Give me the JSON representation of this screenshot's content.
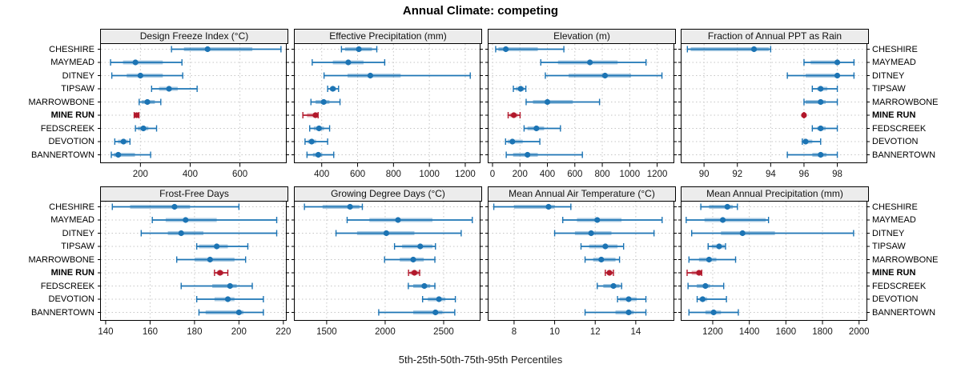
{
  "title": "Annual Climate: competing",
  "caption": "5th-25th-50th-75th-95th Percentiles",
  "colors": {
    "series_blue": "#1c74b4",
    "series_blue_band": "rgba(28,116,180,0.38)",
    "highlight_red": "#b2182b",
    "highlight_red_band": "rgba(178,24,43,0.38)",
    "grid": "#c6c6c6",
    "strip_bg": "#ececec",
    "border": "#000000"
  },
  "sites": [
    "CHESHIRE",
    "MAYMEAD",
    "DITNEY",
    "TIPSAW",
    "MARROWBONE",
    "MINE RUN",
    "FEDSCREEK",
    "DEVOTION",
    "BANNERTOWN"
  ],
  "highlight_site": "MINE RUN",
  "chart_data": {
    "type": "dotplot-interval",
    "percentiles": [
      5,
      25,
      50,
      75,
      95
    ],
    "legend_note": "each row: 5th-95th whisker with caps, 25th-75th thick band, dot at median",
    "panels": [
      {
        "title": "Design Freeze Index (°C)",
        "xlim": [
          38,
          788
        ],
        "ticks": [
          200,
          400,
          600
        ],
        "values": [
          [
            325,
            375,
            470,
            650,
            765
          ],
          [
            80,
            130,
            180,
            290,
            367
          ],
          [
            85,
            145,
            200,
            290,
            370
          ],
          [
            245,
            275,
            315,
            350,
            428
          ],
          [
            195,
            205,
            228,
            258,
            282
          ],
          [
            175,
            180,
            185,
            190,
            194
          ],
          [
            180,
            190,
            212,
            232,
            265
          ],
          [
            97,
            110,
            132,
            150,
            158
          ],
          [
            83,
            93,
            111,
            178,
            241
          ]
        ]
      },
      {
        "title": "Effective Precipitation (mm)",
        "xlim": [
          245,
          1285
        ],
        "ticks": [
          400,
          600,
          800,
          1000,
          1200
        ],
        "values": [
          [
            510,
            530,
            607,
            680,
            707
          ],
          [
            347,
            462,
            548,
            633,
            751
          ],
          [
            413,
            544,
            671,
            840,
            1228
          ],
          [
            433,
            446,
            462,
            480,
            494
          ],
          [
            340,
            366,
            411,
            443,
            502
          ],
          [
            295,
            318,
            365,
            372,
            380
          ],
          [
            333,
            356,
            385,
            413,
            444
          ],
          [
            307,
            322,
            344,
            369,
            433
          ],
          [
            318,
            351,
            381,
            403,
            467
          ]
        ]
      },
      {
        "title": "Elevation (m)",
        "xlim": [
          -35,
          1325
        ],
        "ticks": [
          0,
          200,
          400,
          600,
          800,
          1000,
          1200
        ],
        "values": [
          [
            23,
            43,
            97,
            330,
            520
          ],
          [
            352,
            477,
            710,
            912,
            1119
          ],
          [
            385,
            555,
            820,
            1010,
            1235
          ],
          [
            152,
            170,
            205,
            231,
            243
          ],
          [
            245,
            295,
            400,
            585,
            780
          ],
          [
            114,
            125,
            155,
            184,
            201
          ],
          [
            230,
            255,
            320,
            376,
            495
          ],
          [
            95,
            110,
            145,
            220,
            345
          ],
          [
            100,
            150,
            255,
            330,
            655
          ]
        ]
      },
      {
        "title": "Fraction of Annual PPT as Rain",
        "xlim": [
          88.6,
          99.8
        ],
        "ticks": [
          90,
          92,
          94,
          96,
          98
        ],
        "values": [
          [
            89,
            89.2,
            93,
            93.9,
            94
          ],
          [
            96,
            96.4,
            98,
            98.1,
            99
          ],
          [
            95,
            96.1,
            98,
            98.1,
            99
          ],
          [
            96.5,
            96.8,
            97,
            97.4,
            98
          ],
          [
            96,
            96.1,
            97,
            97.3,
            98
          ],
          [
            96,
            96,
            96,
            96,
            96
          ],
          [
            96.5,
            96.8,
            97,
            97.3,
            98
          ],
          [
            95.9,
            96,
            96.1,
            96.5,
            97
          ],
          [
            95,
            96.5,
            97,
            97.35,
            98
          ]
        ]
      },
      {
        "title": "Frost-Free Days",
        "xlim": [
          137.5,
          221.5
        ],
        "ticks": [
          140,
          160,
          180,
          200,
          220
        ],
        "values": [
          [
            143,
            151,
            171,
            178,
            200
          ],
          [
            161,
            167,
            176,
            190,
            217
          ],
          [
            156,
            168,
            174,
            184,
            217
          ],
          [
            181,
            182,
            190,
            195,
            204
          ],
          [
            172,
            180,
            187,
            198,
            203
          ],
          [
            189,
            190,
            191.5,
            193,
            195
          ],
          [
            174,
            188,
            196,
            199,
            206
          ],
          [
            181,
            189,
            195,
            198,
            211
          ],
          [
            182,
            185,
            200,
            202,
            211
          ]
        ]
      },
      {
        "title": "Growing Degree Days (°C)",
        "xlim": [
          1220,
          2815
        ],
        "ticks": [
          1500,
          2000,
          2500
        ],
        "values": [
          [
            1310,
            1465,
            1700,
            1780,
            1805
          ],
          [
            1675,
            1865,
            2110,
            2405,
            2745
          ],
          [
            1580,
            1760,
            2010,
            2250,
            2650
          ],
          [
            2080,
            2145,
            2300,
            2405,
            2430
          ],
          [
            1995,
            2125,
            2240,
            2330,
            2425
          ],
          [
            2200,
            2215,
            2250,
            2290,
            2295
          ],
          [
            2198,
            2240,
            2335,
            2385,
            2425
          ],
          [
            2320,
            2365,
            2460,
            2515,
            2600
          ],
          [
            1945,
            2240,
            2430,
            2490,
            2595
          ]
        ]
      },
      {
        "title": "Mean Annual Air Temperature (°C)",
        "xlim": [
          6.7,
          15.9
        ],
        "ticks": [
          8,
          10,
          12,
          14
        ],
        "values": [
          [
            7.0,
            8.0,
            9.7,
            10.0,
            10.8
          ],
          [
            10.4,
            11.1,
            12.1,
            13.3,
            15.3
          ],
          [
            10.0,
            11.0,
            11.8,
            12.8,
            14.9
          ],
          [
            11.3,
            11.7,
            12.5,
            13.1,
            13.4
          ],
          [
            11.5,
            11.9,
            12.3,
            13.0,
            13.2
          ],
          [
            12.5,
            12.6,
            12.7,
            12.85,
            12.9
          ],
          [
            12.1,
            12.4,
            12.9,
            13.2,
            13.3
          ],
          [
            13.1,
            13.2,
            13.65,
            14.05,
            14.5
          ],
          [
            11.5,
            13.0,
            13.65,
            13.9,
            14.5
          ]
        ]
      },
      {
        "title": "Mean Annual Precipitation (mm)",
        "xlim": [
          1025,
          2045
        ],
        "ticks": [
          1200,
          1400,
          1600,
          1800,
          2000
        ],
        "values": [
          [
            1135,
            1180,
            1280,
            1310,
            1335
          ],
          [
            1055,
            1155,
            1255,
            1490,
            1505
          ],
          [
            1085,
            1245,
            1363,
            1540,
            1970
          ],
          [
            1175,
            1195,
            1235,
            1265,
            1270
          ],
          [
            1070,
            1125,
            1180,
            1220,
            1325
          ],
          [
            1060,
            1085,
            1125,
            1135,
            1140
          ],
          [
            1065,
            1113,
            1160,
            1185,
            1260
          ],
          [
            1115,
            1127,
            1145,
            1170,
            1275
          ],
          [
            1070,
            1160,
            1205,
            1245,
            1340
          ]
        ]
      }
    ]
  }
}
